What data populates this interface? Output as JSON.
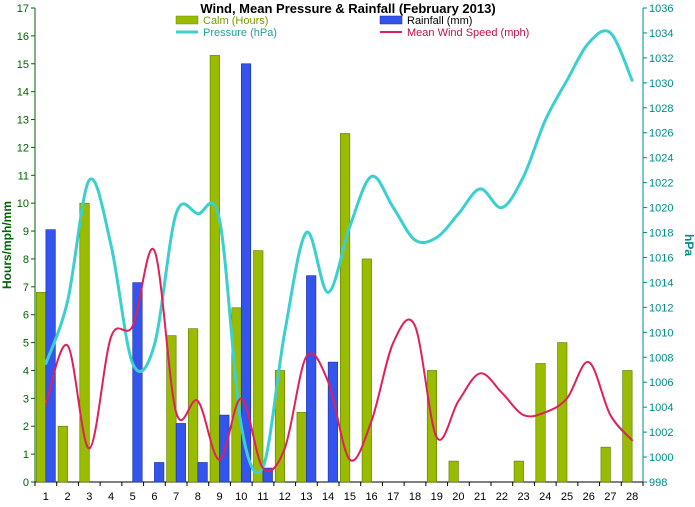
{
  "chart_data": {
    "type": "bar+line",
    "title": "Wind, Mean Pressure & Rainfall (February 2013)",
    "ylabel": "Hours/mph/mm",
    "y2label": "hPa",
    "ylim": [
      0,
      17
    ],
    "y2lim": [
      998,
      1036
    ],
    "categories": [
      "1",
      "2",
      "3",
      "4",
      "5",
      "6",
      "7",
      "8",
      "9",
      "10",
      "11",
      "12",
      "13",
      "14",
      "15",
      "16",
      "17",
      "18",
      "19",
      "20",
      "21",
      "22",
      "23",
      "24",
      "25",
      "26",
      "27",
      "28"
    ],
    "legend": [
      "Calm (Hours)",
      "Rainfall (mm)",
      "Pressure (hPa)",
      "Mean Wind Speed (mph)"
    ],
    "legend_position": "top",
    "series": [
      {
        "name": "Calm (Hours)",
        "kind": "bar",
        "axis": "left",
        "color": "#99BB00",
        "values": [
          6.8,
          2,
          10,
          0,
          0,
          0,
          5.25,
          5.5,
          15.3,
          6.25,
          8.3,
          4,
          2.5,
          0,
          12.5,
          8,
          0,
          0,
          4,
          0.75,
          0,
          0,
          0.75,
          4.25,
          5,
          0,
          1.25,
          4
        ]
      },
      {
        "name": "Rainfall (mm)",
        "kind": "bar",
        "axis": "left",
        "color": "#3355EE",
        "values": [
          9.05,
          0,
          0,
          0,
          7.15,
          0.7,
          2.1,
          0.7,
          2.4,
          15,
          0.5,
          0,
          7.4,
          4.3,
          0,
          0,
          0,
          0,
          0,
          0,
          0,
          0,
          0,
          0,
          0,
          0,
          0,
          0
        ]
      },
      {
        "name": "Pressure (hPa)",
        "kind": "line",
        "axis": "right",
        "color": "#3CCFCF",
        "values": [
          1007.5,
          1012.5,
          1022.2,
          1017,
          1007.5,
          1009,
          1019.5,
          1019.5,
          1019,
          1002.5,
          999.2,
          1010,
          1018,
          1013.2,
          1018.5,
          1022.5,
          1020,
          1017.4,
          1017.6,
          1019.5,
          1021.5,
          1020,
          1022.5,
          1027,
          1030.2,
          1033.2,
          1034,
          1030.2
        ]
      },
      {
        "name": "Mean Wind Speed (mph)",
        "kind": "line",
        "axis": "left",
        "color": "#E0205A",
        "values": [
          2.8,
          4.9,
          1.2,
          5.2,
          5.6,
          8.3,
          2.5,
          2.9,
          0.8,
          3,
          0.5,
          1.2,
          4.5,
          3.6,
          0.8,
          2.2,
          5,
          5.6,
          1.6,
          2.9,
          3.9,
          3.2,
          2.4,
          2.5,
          3,
          4.3,
          2.4,
          1.5
        ]
      }
    ],
    "grid": false
  }
}
